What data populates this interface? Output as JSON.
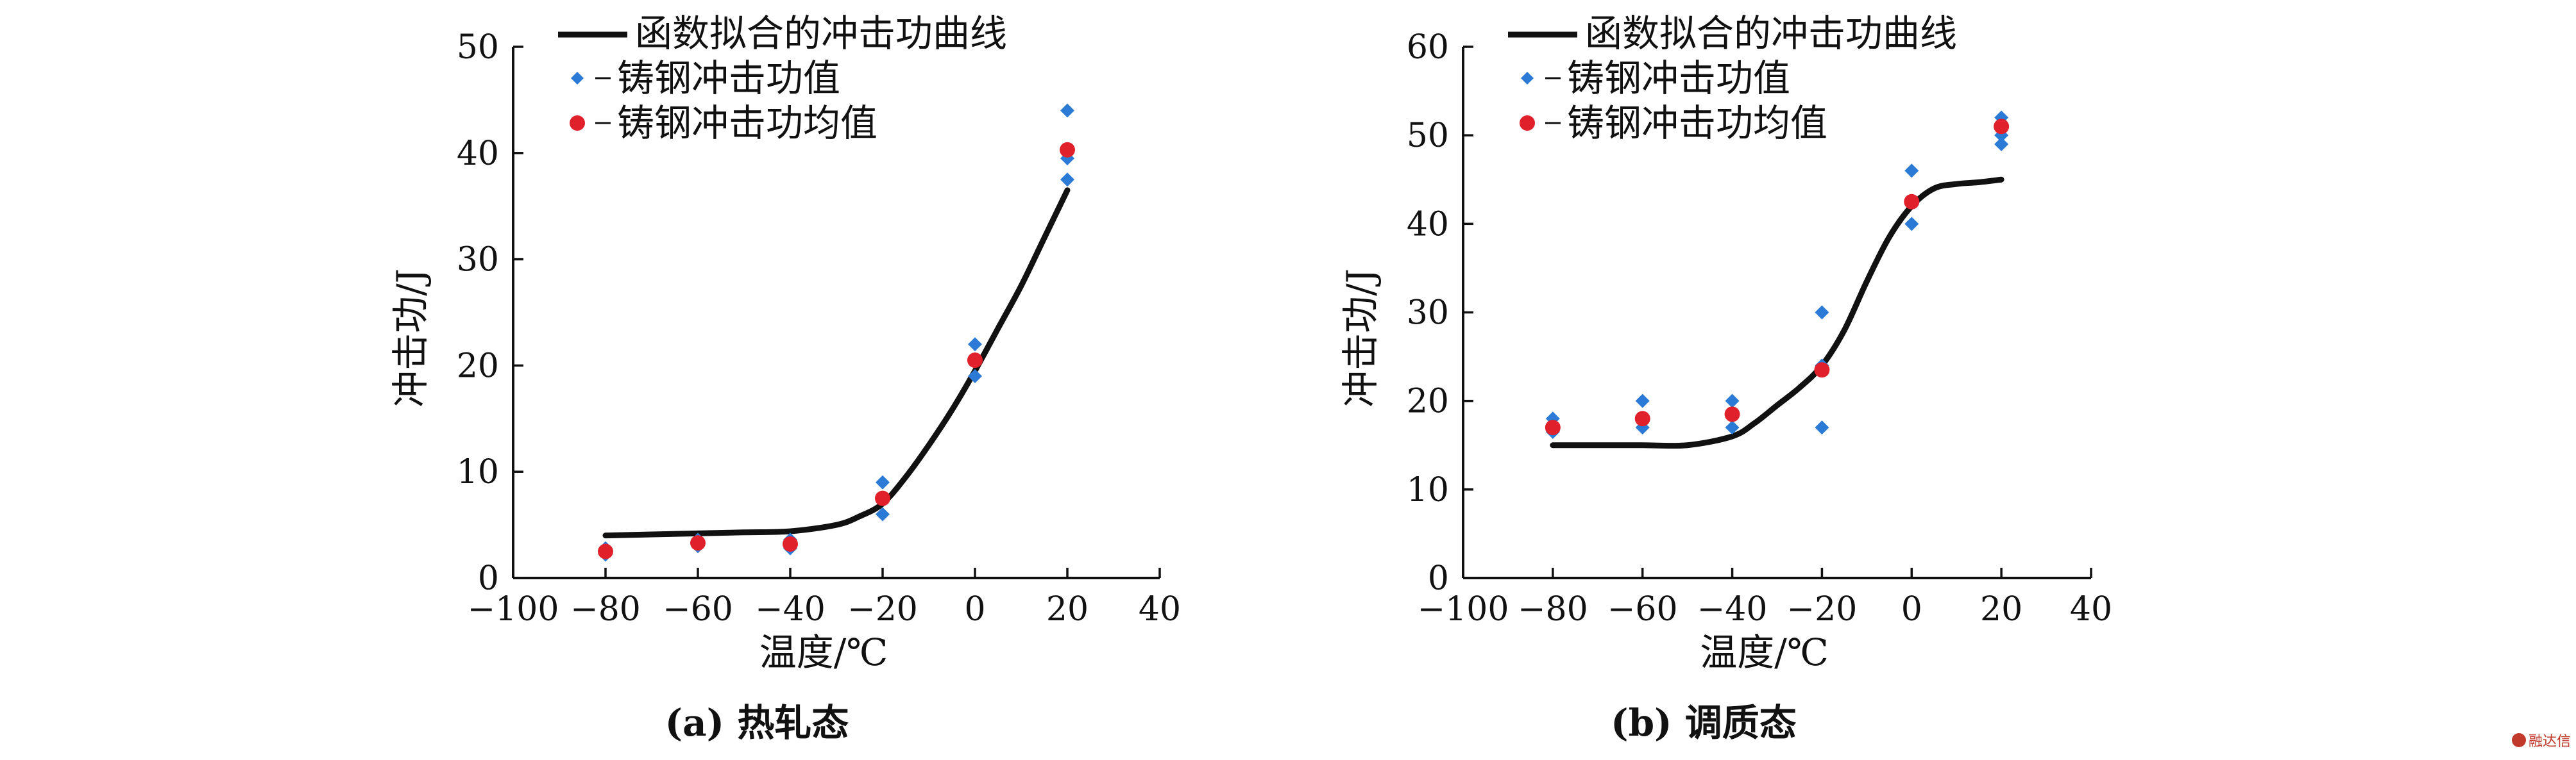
{
  "chart_data": [
    {
      "type": "scatter",
      "caption": "(a) 热轧态",
      "xlabel": "温度/℃",
      "ylabel": "冲击功/J",
      "xlim": [
        -100,
        40
      ],
      "ylim": [
        0,
        50
      ],
      "xticks": [
        -100,
        -80,
        -60,
        -40,
        -20,
        0,
        20,
        40
      ],
      "yticks": [
        0,
        10,
        20,
        30,
        40,
        50
      ],
      "legend": {
        "position": "top-left",
        "entries": [
          "函数拟合的冲击功曲线",
          "铸钢冲击功值",
          "铸钢冲击功均值"
        ]
      },
      "series": [
        {
          "name": "函数拟合的冲击功曲线",
          "kind": "line",
          "color": "#111111",
          "x": [
            -80,
            -70,
            -60,
            -50,
            -40,
            -30,
            -25,
            -20,
            -15,
            -10,
            -5,
            0,
            5,
            10,
            15,
            20
          ],
          "y": [
            4.0,
            4.1,
            4.2,
            4.3,
            4.4,
            5.0,
            5.8,
            7.0,
            9.5,
            12.5,
            15.8,
            19.5,
            23.5,
            27.5,
            32.0,
            36.5
          ]
        },
        {
          "name": "铸钢冲击功值",
          "kind": "scatter",
          "marker": "diamond",
          "color": "#2b7bd6",
          "x": [
            -80,
            -80,
            -60,
            -60,
            -40,
            -40,
            -20,
            -20,
            0,
            0,
            20,
            20,
            20
          ],
          "y": [
            2.2,
            2.8,
            3.0,
            3.6,
            2.8,
            3.6,
            6.0,
            9.0,
            19.0,
            22.0,
            37.5,
            39.5,
            44.0
          ]
        },
        {
          "name": "铸钢冲击功均值",
          "kind": "scatter",
          "marker": "circle",
          "color": "#e0202a",
          "x": [
            -80,
            -60,
            -40,
            -20,
            0,
            20
          ],
          "y": [
            2.5,
            3.3,
            3.2,
            7.5,
            20.5,
            40.3
          ]
        }
      ]
    },
    {
      "type": "scatter",
      "caption": "(b) 调质态",
      "xlabel": "温度/℃",
      "ylabel": "冲击功/J",
      "xlim": [
        -100,
        40
      ],
      "ylim": [
        0,
        60
      ],
      "xticks": [
        -100,
        -80,
        -60,
        -40,
        -20,
        0,
        20,
        40
      ],
      "yticks": [
        0,
        10,
        20,
        30,
        40,
        50,
        60
      ],
      "legend": {
        "position": "top-left",
        "entries": [
          "函数拟合的冲击功曲线",
          "铸钢冲击功值",
          "铸钢冲击功均值"
        ]
      },
      "series": [
        {
          "name": "函数拟合的冲击功曲线",
          "kind": "line",
          "color": "#111111",
          "x": [
            -80,
            -70,
            -60,
            -50,
            -40,
            -35,
            -30,
            -25,
            -20,
            -15,
            -10,
            -5,
            0,
            5,
            10,
            15,
            20
          ],
          "y": [
            15.0,
            15.0,
            15.0,
            15.0,
            16.0,
            17.5,
            19.5,
            21.5,
            24.0,
            28.0,
            33.5,
            38.5,
            42.0,
            44.0,
            44.5,
            44.7,
            45.0
          ]
        },
        {
          "name": "铸钢冲击功值",
          "kind": "scatter",
          "marker": "diamond",
          "color": "#2b7bd6",
          "x": [
            -80,
            -80,
            -60,
            -60,
            -40,
            -40,
            -20,
            -20,
            -20,
            0,
            0,
            20,
            20,
            20
          ],
          "y": [
            16.5,
            18.0,
            17.0,
            20.0,
            17.0,
            20.0,
            17.0,
            24.0,
            30.0,
            40.0,
            46.0,
            49.0,
            50.0,
            52.0
          ]
        },
        {
          "name": "铸钢冲击功均值",
          "kind": "scatter",
          "marker": "circle",
          "color": "#e0202a",
          "x": [
            -80,
            -60,
            -40,
            -20,
            0,
            20
          ],
          "y": [
            17.0,
            18.0,
            18.5,
            23.5,
            42.5,
            51.0
          ]
        }
      ]
    }
  ],
  "watermark": {
    "text": "融达信"
  }
}
